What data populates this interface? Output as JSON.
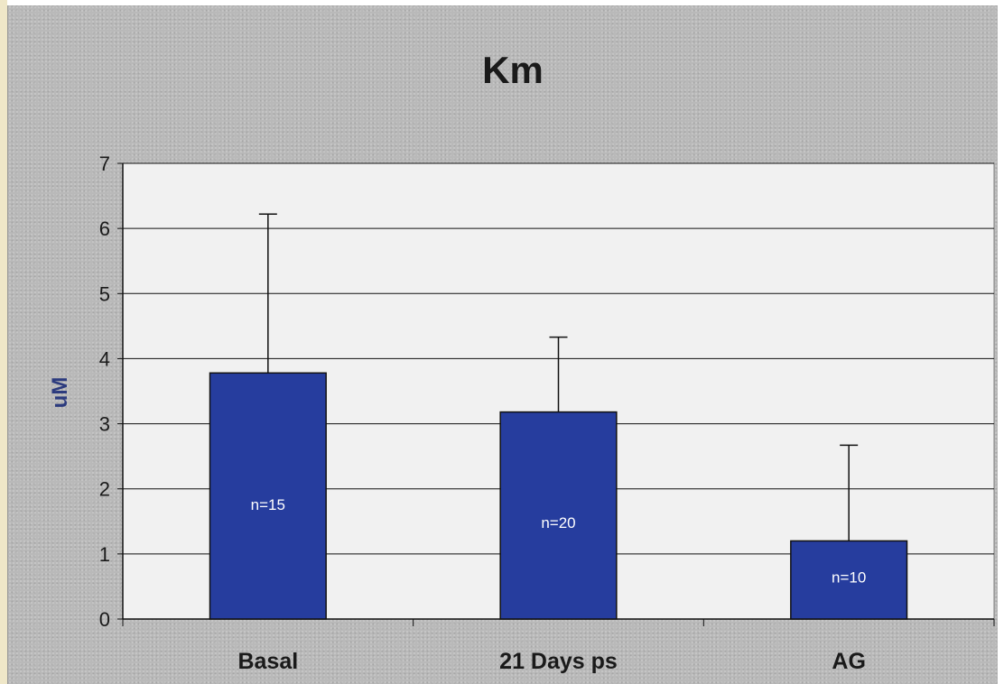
{
  "chart_data": {
    "type": "bar",
    "title": "Km",
    "xlabel": "",
    "ylabel": "uM",
    "ylim": [
      0,
      7
    ],
    "yticks": [
      "0",
      "1",
      "2",
      "3",
      "4",
      "5",
      "6",
      "7"
    ],
    "categories": [
      "Basal",
      "21 Days ps",
      "AG"
    ],
    "values": [
      3.78,
      3.18,
      1.2
    ],
    "error_upper": [
      6.22,
      4.33,
      2.67
    ],
    "bar_labels": [
      "n=15",
      "n=20",
      "n=10"
    ],
    "grid": true,
    "legend": "none",
    "colors": {
      "bar": "#263d9e",
      "bar_edge": "#111111",
      "plot_bg": "#f1f1f1",
      "title": "#1a1a1a",
      "ylabel": "#2c3b7e"
    }
  }
}
